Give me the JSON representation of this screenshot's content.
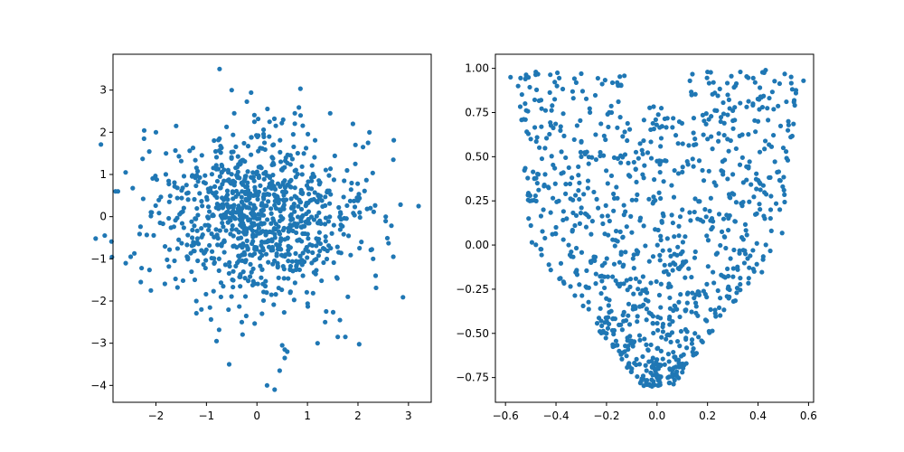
{
  "chart_data": [
    {
      "type": "scatter",
      "title": "",
      "xlabel": "",
      "ylabel": "",
      "xlim": [
        -2.85,
        3.45
      ],
      "ylim": [
        -4.4,
        3.85
      ],
      "xticks": [
        -2,
        -1,
        0,
        1,
        2,
        3
      ],
      "yticks": [
        -4,
        -3,
        -2,
        -1,
        0,
        1,
        2,
        3
      ],
      "xtick_labels": [
        "−2",
        "−1",
        "0",
        "1",
        "2",
        "3"
      ],
      "ytick_labels": [
        "−4",
        "−3",
        "−2",
        "−1",
        "0",
        "1",
        "2",
        "3"
      ],
      "grid": false,
      "marker_color": "#1f77b4",
      "series": [
        {
          "x": [
            -0.74,
            -0.5,
            -2.6,
            -2.8,
            -2.5,
            3.2,
            2.7,
            2.7,
            0.2,
            0.35,
            -0.55,
            -0.8,
            0.5,
            0.55,
            0.6,
            1.2,
            1.6,
            1.75,
            1.35,
            2.1,
            2.2,
            1.9,
            -2.3,
            -2.1,
            -2.0,
            -1.6,
            -1.8,
            -0.45,
            0.75,
            1.95,
            2.35,
            0.25,
            -0.05,
            -1.1,
            1.45,
            0.55,
            0.45,
            0.1,
            -0.3,
            -1.2,
            1.8,
            2.3,
            2.55
          ],
          "y": [
            3.5,
            3.0,
            1.05,
            0.6,
            -0.95,
            0.25,
            1.35,
            -0.95,
            -4.0,
            -4.1,
            -3.5,
            -2.95,
            -3.05,
            -3.15,
            -3.2,
            -3.0,
            -2.85,
            -2.85,
            -2.5,
            1.65,
            1.75,
            2.2,
            -1.55,
            -1.75,
            2.0,
            2.15,
            1.5,
            2.45,
            2.45,
            1.7,
            -1.4,
            2.25,
            2.25,
            -2.2,
            2.45,
            -3.35,
            -3.65,
            -2.3,
            -2.5,
            -2.0,
            -1.9,
            -1.0,
            0.0
          ]
        }
      ]
    },
    {
      "type": "scatter",
      "title": "",
      "xlabel": "",
      "ylabel": "",
      "xlim": [
        -0.64,
        0.62
      ],
      "ylim": [
        -0.89,
        1.08
      ],
      "xticks": [
        -0.6,
        -0.4,
        -0.2,
        0.0,
        0.2,
        0.4,
        0.6
      ],
      "yticks": [
        -0.75,
        -0.5,
        -0.25,
        0.0,
        0.25,
        0.5,
        0.75,
        1.0
      ],
      "xtick_labels": [
        "−0.6",
        "−0.4",
        "−0.2",
        "0.0",
        "0.2",
        "0.4",
        "0.6"
      ],
      "ytick_labels": [
        "−0.75",
        "−0.50",
        "−0.25",
        "0.00",
        "0.25",
        "0.50",
        "0.75",
        "1.00"
      ],
      "grid": false,
      "marker_color": "#1f77b4",
      "series": [
        {
          "x": [
            -0.58,
            -0.55,
            -0.48,
            -0.3,
            0.2,
            0.33,
            0.43,
            0.58,
            0.55,
            0.52,
            -0.5,
            -0.47,
            -0.45,
            -0.02,
            0.05,
            0.0,
            -0.1,
            0.1,
            -0.15,
            -0.2,
            0.15,
            0.25,
            0.35,
            0.45,
            0.5,
            -0.35,
            -0.4,
            0.3,
            -0.25,
            0.2,
            0.4,
            -0.05,
            0.1,
            0.05,
            -0.12,
            -0.3,
            0.38,
            0.28,
            -0.18,
            0.22
          ],
          "y": [
            0.95,
            0.9,
            0.98,
            0.97,
            0.98,
            0.98,
            0.99,
            0.93,
            0.86,
            0.7,
            0.6,
            0.4,
            0.2,
            -0.8,
            -0.78,
            -0.75,
            -0.7,
            -0.72,
            -0.6,
            -0.5,
            -0.5,
            -0.3,
            -0.05,
            0.2,
            0.55,
            0.0,
            0.1,
            0.4,
            0.3,
            0.6,
            0.7,
            0.45,
            0.2,
            -0.45,
            -0.2,
            0.5,
            0.8,
            0.85,
            0.75,
            0.1
          ]
        }
      ]
    }
  ]
}
